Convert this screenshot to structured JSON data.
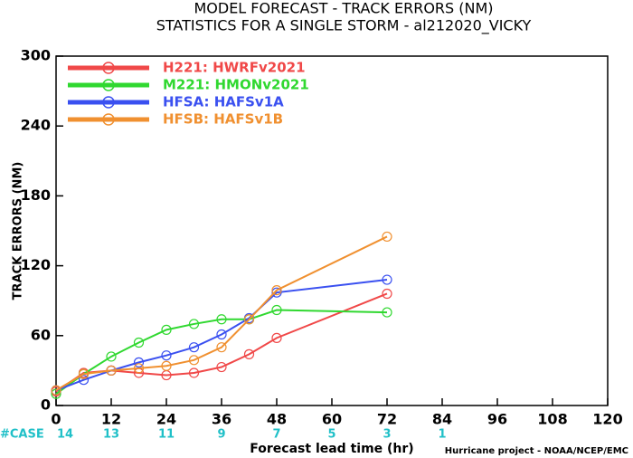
{
  "chart_data": {
    "type": "line",
    "title": "MODEL FORECAST - TRACK ERRORS (NM)",
    "subtitle": "STATISTICS FOR A SINGLE STORM - al212020_VICKY",
    "x_label": "Forecast lead time (hr)",
    "y_label": "TRACK ERRORS (NM)",
    "credit": "Hurricane project - NOAA/NCEP/EMC",
    "x": [
      0,
      6,
      12,
      18,
      24,
      30,
      36,
      42,
      48,
      72
    ],
    "series": [
      {
        "name": "H221: HWRFv2021",
        "color": "#f04848",
        "values": [
          12,
          28,
          30,
          28,
          26,
          28,
          33,
          44,
          58,
          96
        ]
      },
      {
        "name": "M221: HMONv2021",
        "color": "#30d830",
        "values": [
          10,
          27,
          42,
          54,
          65,
          70,
          74,
          74,
          82,
          80
        ]
      },
      {
        "name": "HFSA: HAFSv1A",
        "color": "#3a50f0",
        "values": [
          13,
          22,
          30,
          37,
          43,
          50,
          61,
          75,
          97,
          108
        ]
      },
      {
        "name": "HFSB: HAFSv1B",
        "color": "#f09030",
        "values": [
          13,
          27,
          30,
          32,
          34,
          39,
          50,
          74,
          99,
          145
        ]
      }
    ],
    "cases": {
      "label": "#CASE",
      "color": "#20c0c8",
      "x": [
        0,
        12,
        24,
        36,
        48,
        60,
        72,
        84
      ],
      "values": [
        14,
        13,
        11,
        9,
        7,
        5,
        3,
        1
      ]
    },
    "xlim": [
      0,
      120
    ],
    "xticks": [
      0,
      12,
      24,
      36,
      48,
      60,
      72,
      84,
      96,
      108,
      120
    ],
    "ylim": [
      0,
      300
    ],
    "yticks": [
      0,
      60,
      120,
      180,
      240,
      300
    ]
  }
}
